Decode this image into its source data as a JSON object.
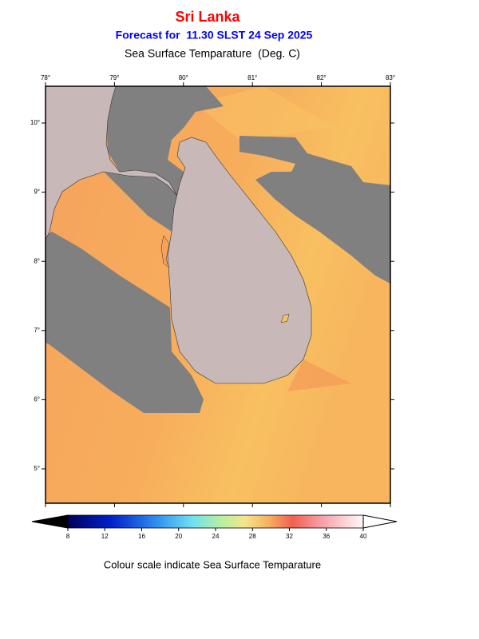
{
  "header": {
    "title": "Sri Lanka",
    "subtitle": "Forecast for  11.30 SLST 24 Sep 2025",
    "parameter": "Sea Surface Temparature  (Deg. C)"
  },
  "map": {
    "lon_ticks": [
      {
        "value": 78,
        "label": "78°"
      },
      {
        "value": 79,
        "label": "79°"
      },
      {
        "value": 80,
        "label": "80°"
      },
      {
        "value": 81,
        "label": "81°"
      },
      {
        "value": 82,
        "label": "82°"
      },
      {
        "value": 83,
        "label": "83°"
      }
    ],
    "lat_ticks": [
      {
        "value": 10,
        "label": "10°"
      },
      {
        "value": 9,
        "label": "9°"
      },
      {
        "value": 8,
        "label": "8°"
      },
      {
        "value": 7,
        "label": "7°"
      },
      {
        "value": 6,
        "label": "6°"
      },
      {
        "value": 5,
        "label": "5°"
      }
    ]
  },
  "colorbar": {
    "ticks": [
      8,
      12,
      16,
      20,
      24,
      28,
      32,
      36,
      40
    ]
  },
  "caption": "Colour scale indicate Sea Surface Temparature"
}
